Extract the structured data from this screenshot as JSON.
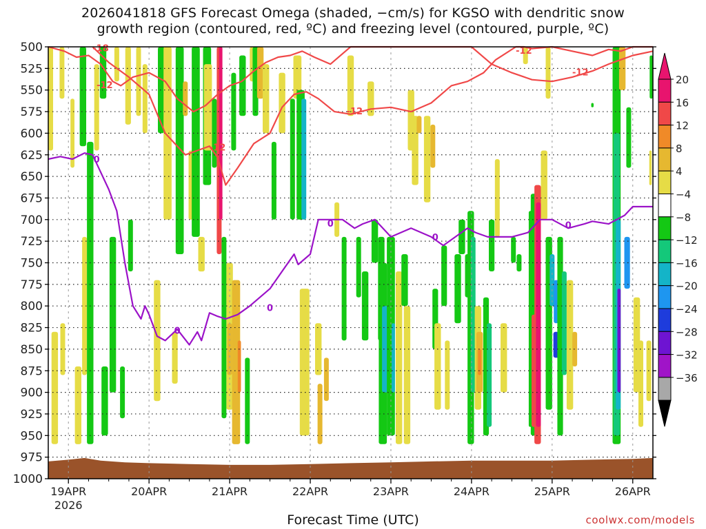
{
  "title_line1": "2026041818 GFS Forecast Omega (shaded, −cm/s) for KGSO with dendritic snow",
  "title_line2": "growth region (contoured, red, ºC) and freezing level (contoured, purple, ºC)",
  "xlabel": "Forecast Time (UTC)",
  "credit": "coolwx.com/models",
  "colors": {
    "freezing_line": "#9b12c8",
    "dendritic_line": "#f04848",
    "terrain": "#9a532a"
  },
  "chart_data": {
    "type": "heatmap",
    "y_axis": {
      "label": "",
      "ticks": [
        500,
        525,
        550,
        575,
        600,
        625,
        650,
        675,
        700,
        725,
        750,
        775,
        800,
        825,
        850,
        875,
        900,
        925,
        950,
        975,
        1000
      ],
      "range": [
        500,
        1000
      ]
    },
    "x_axis": {
      "ticks": [
        "19APR",
        "20APR",
        "21APR",
        "22APR",
        "23APR",
        "24APR",
        "25APR",
        "26APR"
      ],
      "year": "2026",
      "range_days": [
        18.75,
        26.25
      ]
    },
    "colorbar": {
      "labels": [
        "20",
        "16",
        "12",
        "8",
        "4",
        "−4",
        "−8",
        "−12",
        "−16",
        "−20",
        "−24",
        "−28",
        "−32",
        "−36"
      ],
      "colors": [
        "#e8146e",
        "#f04848",
        "#f08a28",
        "#e6b830",
        "#e6dc46",
        "#ffffff",
        "#14c814",
        "#14c87a",
        "#14b4c8",
        "#1e96f0",
        "#1e3cdc",
        "#6e14d2",
        "#a014c8",
        "#a8a8a8"
      ]
    },
    "freezing_level": {
      "label": "0",
      "x": [
        18.75,
        18.9,
        19.05,
        19.2,
        19.3,
        19.5,
        19.6,
        19.7,
        19.8,
        19.9,
        19.95,
        20.0,
        20.1,
        20.2,
        20.35,
        20.5,
        20.6,
        20.65,
        20.75,
        20.85,
        20.95,
        21.1,
        21.25,
        21.5,
        21.65,
        21.8,
        21.85,
        22.0,
        22.1,
        22.4,
        22.55,
        22.65,
        22.8,
        23.0,
        23.25,
        23.5,
        23.65,
        23.8,
        23.95,
        24.05,
        24.2,
        24.5,
        24.7,
        24.85,
        25.0,
        25.2,
        25.4,
        25.5,
        25.7,
        25.9,
        26.0,
        26.25
      ],
      "y": [
        630,
        627,
        630,
        623,
        625,
        665,
        690,
        750,
        800,
        815,
        800,
        810,
        835,
        840,
        827,
        845,
        830,
        840,
        808,
        812,
        815,
        810,
        800,
        780,
        760,
        740,
        752,
        740,
        700,
        700,
        710,
        705,
        700,
        720,
        710,
        720,
        730,
        720,
        710,
        715,
        720,
        720,
        715,
        700,
        700,
        710,
        705,
        702,
        705,
        695,
        685,
        685
      ]
    },
    "dendritic_contours": {
      "label": "-12",
      "upper_line": {
        "x": [
          18.75,
          18.95,
          19.1,
          19.25,
          19.4,
          19.55,
          19.65,
          19.8,
          20.0,
          20.2,
          20.35,
          20.55,
          20.7,
          20.85,
          21.0,
          21.15,
          21.3,
          21.45,
          21.6,
          21.75,
          21.9,
          22.05,
          22.25,
          22.5,
          22.75,
          23.0,
          23.25,
          23.5,
          23.7,
          23.85,
          24.0,
          24.25,
          24.5,
          24.75,
          25.0,
          25.25,
          25.5,
          25.7,
          25.85,
          26.0,
          26.25
        ],
        "y": [
          500,
          505,
          512,
          510,
          520,
          540,
          545,
          535,
          530,
          540,
          560,
          575,
          568,
          555,
          545,
          540,
          528,
          518,
          512,
          510,
          505,
          512,
          520,
          500,
          500,
          500,
          500,
          500,
          500,
          500,
          500,
          520,
          530,
          538,
          540,
          535,
          528,
          520,
          515,
          510,
          505
        ]
      },
      "lower_line": {
        "x": [
          19.3,
          19.5,
          19.75,
          20.0,
          20.2,
          20.45,
          20.6,
          20.75,
          20.85,
          20.95,
          21.1,
          21.3,
          21.5,
          21.65,
          21.8,
          21.95,
          22.1,
          22.3,
          22.5,
          22.75,
          23.0,
          23.25,
          23.5,
          23.75,
          23.95,
          24.15,
          24.3,
          24.55,
          24.65,
          24.75,
          25.0,
          25.25,
          25.5,
          25.7,
          25.85,
          26.0,
          26.1,
          26.25
        ],
        "y": [
          500,
          518,
          535,
          555,
          600,
          625,
          620,
          615,
          628,
          660,
          640,
          612,
          600,
          570,
          555,
          552,
          560,
          575,
          578,
          572,
          570,
          575,
          565,
          545,
          540,
          530,
          515,
          500,
          500,
          502,
          500,
          505,
          510,
          503,
          505,
          500,
          500,
          500
        ]
      }
    }
  }
}
